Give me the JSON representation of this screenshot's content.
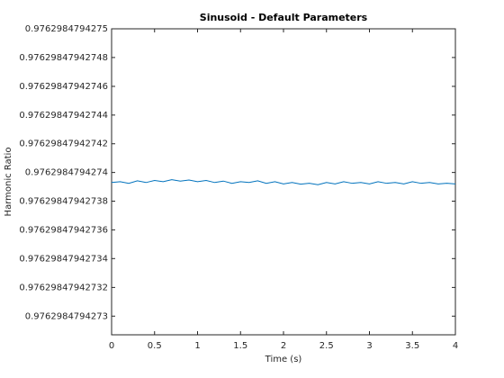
{
  "chart_data": {
    "type": "line",
    "title": "Sinusoid - Default Parameters",
    "x_label": "Time (s)",
    "y_label": "Harmonic Ratio",
    "x": [
      0,
      0.1,
      0.2,
      0.3,
      0.4,
      0.5,
      0.6,
      0.7,
      0.8,
      0.9,
      1,
      1.1,
      1.2,
      1.3,
      1.4,
      1.5,
      1.6,
      1.7,
      1.8,
      1.9,
      2,
      2.1,
      2.2,
      2.3,
      2.4,
      2.5,
      2.6,
      2.7,
      2.8,
      2.9,
      3,
      3.1,
      3.2,
      3.3,
      3.4,
      3.5,
      3.6,
      3.7,
      3.8,
      3.9,
      4
    ],
    "series": [
      {
        "name": "Harmonic Ratio",
        "color": "#0072bd",
        "values": [
          0.976298479427393,
          0.9762984794273936,
          0.9762984794273925,
          0.9762984794273942,
          0.976298479427393,
          0.9762984794273944,
          0.9762984794273936,
          0.976298479427395,
          0.976298479427394,
          0.9762984794273948,
          0.9762984794273936,
          0.9762984794273944,
          0.976298479427393,
          0.976298479427394,
          0.9762984794273925,
          0.9762984794273936,
          0.976298479427393,
          0.9762984794273942,
          0.9762984794273925,
          0.9762984794273936,
          0.976298479427392,
          0.976298479427393,
          0.9762984794273919,
          0.9762984794273925,
          0.9762984794273915,
          0.976298479427393,
          0.976298479427392,
          0.9762984794273936,
          0.9762984794273925,
          0.976298479427393,
          0.976298479427392,
          0.9762984794273936,
          0.9762984794273925,
          0.976298479427393,
          0.976298479427392,
          0.9762984794273936,
          0.9762984794273925,
          0.976298479427393,
          0.976298479427392,
          0.9762984794273925,
          0.976298479427392
        ]
      }
    ],
    "xlim": [
      0,
      4
    ],
    "xticks": [
      0,
      0.5,
      1,
      1.5,
      2,
      2.5,
      3,
      3.5,
      4
    ],
    "ylim": [
      0.976298479427287,
      0.9762984794275
    ],
    "yticks": [
      0.9762984794273,
      0.97629847942732,
      0.97629847942734,
      0.97629847942736,
      0.97629847942738,
      0.9762984794274,
      0.97629847942742,
      0.97629847942744,
      0.97629847942746,
      0.97629847942748,
      0.9762984794275
    ],
    "grid": false
  }
}
